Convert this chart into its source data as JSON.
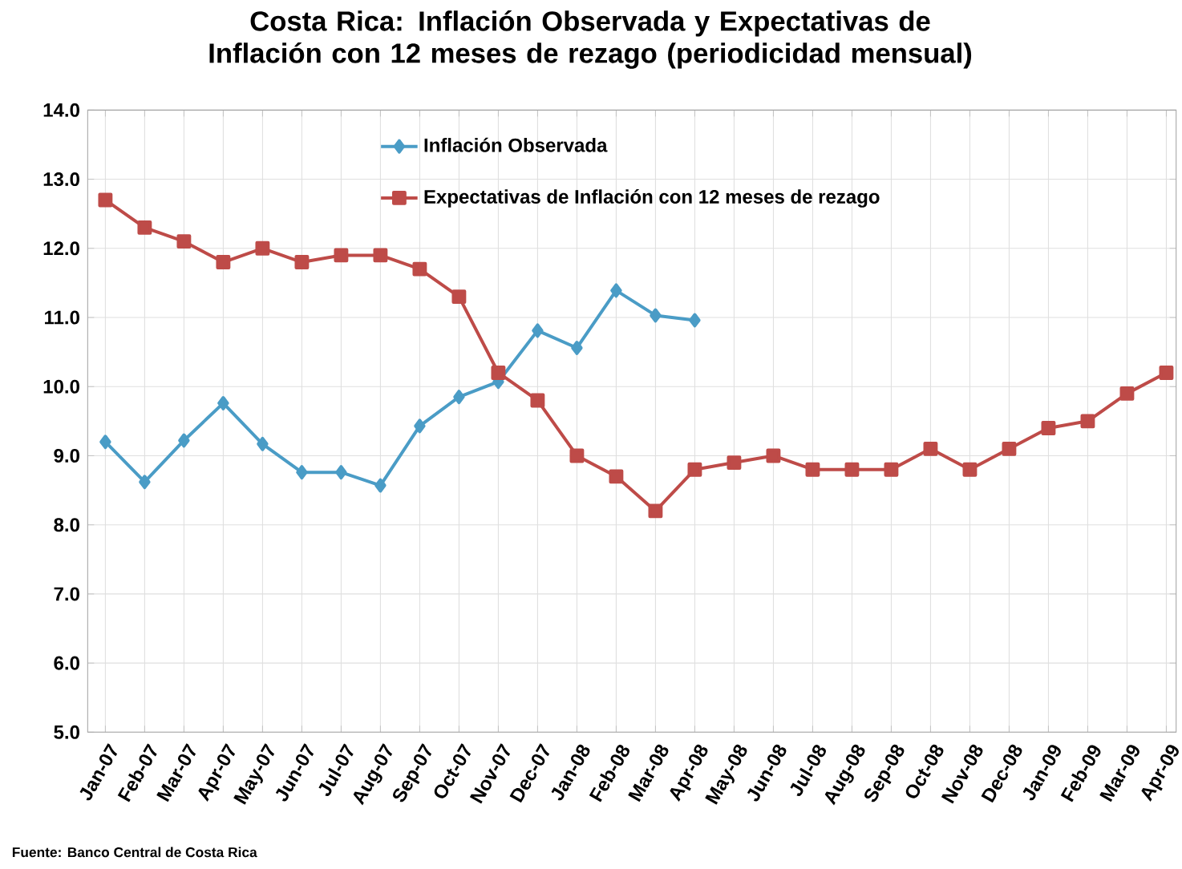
{
  "chart_data": {
    "type": "line",
    "title": "Costa Rica: Inflación Observada y Expectativas de Inflación con 12 meses de rezago  (periodicidad mensual)",
    "categories": [
      "Jan-07",
      "Feb-07",
      "Mar-07",
      "Apr-07",
      "May-07",
      "Jun-07",
      "Jul-07",
      "Aug-07",
      "Sep-07",
      "Oct-07",
      "Nov-07",
      "Dec-07",
      "Jan-08",
      "Feb-08",
      "Mar-08",
      "Apr-08",
      "May-08",
      "Jun-08",
      "Jul-08",
      "Aug-08",
      "Sep-08",
      "Oct-08",
      "Nov-08",
      "Dec-08",
      "Jan-09",
      "Feb-09",
      "Mar-09",
      "Apr-09"
    ],
    "series": [
      {
        "name": "Inflación Observada",
        "color": "#4a9cc6",
        "marker": "diamond",
        "values": [
          9.2,
          8.62,
          9.22,
          9.76,
          9.17,
          8.76,
          8.76,
          8.57,
          9.43,
          9.85,
          10.07,
          10.81,
          10.56,
          11.39,
          11.03,
          10.96,
          null,
          null,
          null,
          null,
          null,
          null,
          null,
          null,
          null,
          null,
          null,
          null
        ]
      },
      {
        "name": "Expectativas de Inflación con 12 meses de rezago",
        "color": "#be4b48",
        "marker": "square",
        "values": [
          12.7,
          12.3,
          12.1,
          11.8,
          12.0,
          11.8,
          11.9,
          11.9,
          11.7,
          11.3,
          10.2,
          9.8,
          9.0,
          8.7,
          8.2,
          8.8,
          8.9,
          9.0,
          8.8,
          8.8,
          8.8,
          9.1,
          8.8,
          9.1,
          9.4,
          9.5,
          9.9,
          10.2
        ]
      }
    ],
    "ylim": [
      5,
      14
    ],
    "yticks": [
      {
        "value": 5,
        "label": "5.0"
      },
      {
        "value": 6,
        "label": "6.0"
      },
      {
        "value": 7,
        "label": "7.0"
      },
      {
        "value": 8,
        "label": "8.0"
      },
      {
        "value": 9,
        "label": "9.0"
      },
      {
        "value": 10,
        "label": "10.0"
      },
      {
        "value": 11,
        "label": "11.0"
      },
      {
        "value": 12,
        "label": "12.0"
      },
      {
        "value": 13,
        "label": "13.0"
      },
      {
        "value": 14,
        "label": "14.0"
      }
    ],
    "grid": true,
    "legend": "top",
    "annotations": [
      "Fuente: Banco Central de Costa Rica"
    ]
  }
}
